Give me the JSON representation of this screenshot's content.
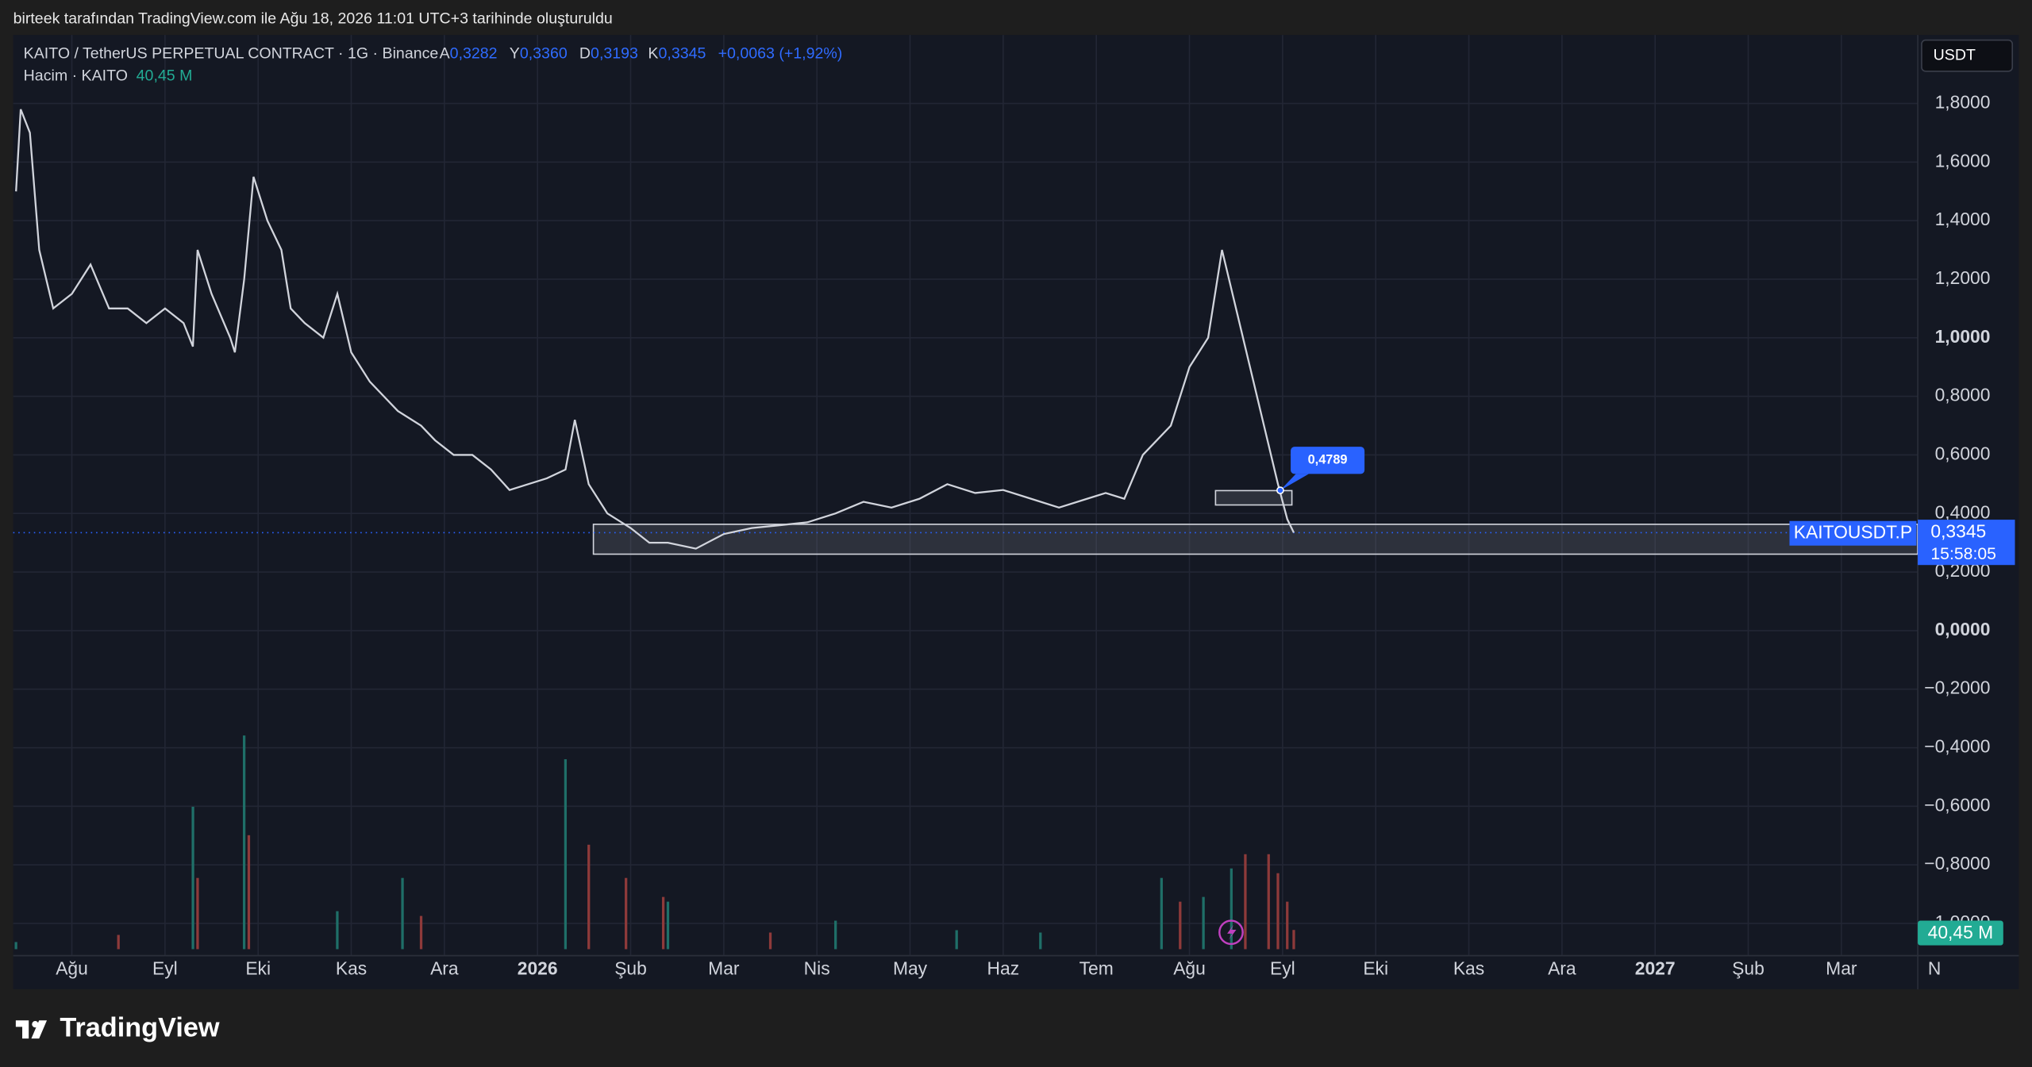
{
  "header": {
    "caption": "birteek tarafından TradingView.com ile Ağu 18, 2026 11:01 UTC+3 tarihinde oluşturuldu"
  },
  "footer": {
    "brand": "TradingView"
  },
  "chart_data": {
    "type": "line",
    "symbol": "KAITO / TetherUS PERPETUAL CONTRACT · 1G · Binance",
    "ohlc": [
      {
        "key": "A",
        "value": "0,3282"
      },
      {
        "key": "Y",
        "value": "0,3360"
      },
      {
        "key": "D",
        "value": "0,3193"
      },
      {
        "key": "K",
        "value": "0,3345"
      }
    ],
    "change": "+0,0063 (+1,92%)",
    "volume_title": "Hacim · KAITO",
    "volume_value": "40,45 M",
    "currency": "USDT",
    "ticker": "KAITOUSDT.P",
    "countdown": "15:58:05",
    "last_price": {
      "value": 0.3345,
      "label": "0,3345"
    },
    "callout": {
      "value": 0.4789,
      "label": "0,4789"
    },
    "zones": [
      {
        "x": [
          5.6,
          19.82
        ],
        "y": [
          0.261,
          0.363
        ]
      },
      {
        "x": [
          12.28,
          13.1
        ],
        "y": [
          0.429,
          0.478
        ]
      }
    ],
    "color": "#d1d4dc",
    "grid": true,
    "xlim": [
      -0.63,
      19.82
    ],
    "ylim": [
      -1.11,
      2.034
    ],
    "yticks": [
      {
        "value": 1.8,
        "label": "1,8000"
      },
      {
        "value": 1.6,
        "label": "1,6000"
      },
      {
        "value": 1.4,
        "label": "1,4000"
      },
      {
        "value": 1.2,
        "label": "1,2000"
      },
      {
        "value": 1.0,
        "label": "1,0000"
      },
      {
        "value": 0.8,
        "label": "0,8000"
      },
      {
        "value": 0.6,
        "label": "0,6000"
      },
      {
        "value": 0.4,
        "label": "0,4000"
      },
      {
        "value": 0.2,
        "label": "0,2000"
      },
      {
        "value": 0,
        "label": "0,0000"
      },
      {
        "value": -0.2,
        "label": "−0,2000"
      },
      {
        "value": -0.4,
        "label": "−0,4000"
      },
      {
        "value": -0.6,
        "label": "−0,6000"
      },
      {
        "value": -0.8,
        "label": "−0,8000"
      },
      {
        "value": -1.0,
        "label": "−1,0000"
      }
    ],
    "xticks": [
      {
        "value": 0,
        "label": "Ağu"
      },
      {
        "value": 1,
        "label": "Eyl"
      },
      {
        "value": 2,
        "label": "Eki"
      },
      {
        "value": 3,
        "label": "Kas"
      },
      {
        "value": 4,
        "label": "Ara"
      },
      {
        "value": 5,
        "label": "2026"
      },
      {
        "value": 6,
        "label": "Şub"
      },
      {
        "value": 7,
        "label": "Mar"
      },
      {
        "value": 8,
        "label": "Nis"
      },
      {
        "value": 9,
        "label": "May"
      },
      {
        "value": 10,
        "label": "Haz"
      },
      {
        "value": 11,
        "label": "Tem"
      },
      {
        "value": 12,
        "label": "Ağu"
      },
      {
        "value": 13,
        "label": "Eyl"
      },
      {
        "value": 14,
        "label": "Eki"
      },
      {
        "value": 15,
        "label": "Kas"
      },
      {
        "value": 16,
        "label": "Ara"
      },
      {
        "value": 17,
        "label": "2027"
      },
      {
        "value": 18,
        "label": "Şub"
      },
      {
        "value": 19,
        "label": "Mar"
      },
      {
        "value": 20,
        "label": "N"
      }
    ],
    "x": [
      -0.6,
      -0.55,
      -0.45,
      -0.35,
      -0.2,
      0,
      0.2,
      0.4,
      0.6,
      0.8,
      1.0,
      1.2,
      1.3,
      1.35,
      1.5,
      1.7,
      1.75,
      1.85,
      1.95,
      2.1,
      2.25,
      2.35,
      2.5,
      2.7,
      2.85,
      3.0,
      3.2,
      3.5,
      3.75,
      3.9,
      4.1,
      4.3,
      4.5,
      4.7,
      4.9,
      5.1,
      5.3,
      5.4,
      5.55,
      5.75,
      6.0,
      6.2,
      6.4,
      6.7,
      7.0,
      7.3,
      7.6,
      7.9,
      8.2,
      8.5,
      8.8,
      9.1,
      9.4,
      9.7,
      10.0,
      10.3,
      10.6,
      10.9,
      11.1,
      11.3,
      11.5,
      11.8,
      12.0,
      12.2,
      12.35,
      12.5,
      12.65,
      12.8,
      12.95,
      13.05,
      13.12
    ],
    "values": [
      1.5,
      1.78,
      1.7,
      1.3,
      1.1,
      1.15,
      1.25,
      1.1,
      1.1,
      1.05,
      1.1,
      1.05,
      0.97,
      1.3,
      1.15,
      1.0,
      0.95,
      1.2,
      1.55,
      1.4,
      1.3,
      1.1,
      1.05,
      1.0,
      1.15,
      0.95,
      0.85,
      0.75,
      0.7,
      0.65,
      0.6,
      0.6,
      0.55,
      0.48,
      0.5,
      0.52,
      0.55,
      0.72,
      0.5,
      0.4,
      0.35,
      0.3,
      0.3,
      0.28,
      0.33,
      0.35,
      0.36,
      0.37,
      0.4,
      0.44,
      0.42,
      0.45,
      0.5,
      0.47,
      0.48,
      0.45,
      0.42,
      0.45,
      0.47,
      0.45,
      0.6,
      0.7,
      0.9,
      1.0,
      1.3,
      1.1,
      0.9,
      0.7,
      0.5,
      0.38,
      0.3345
    ],
    "vlim": [
      0,
      600
    ],
    "volume": [
      {
        "color": "#1f6f68",
        "x": [
          -0.6,
          1.3,
          1.85,
          2.85,
          3.55,
          5.3,
          6.4,
          8.2,
          11.7,
          12.15,
          12.45,
          9.5,
          10.4
        ],
        "values": [
          15,
          300,
          450,
          80,
          150,
          400,
          100,
          60,
          150,
          110,
          170,
          40,
          35
        ]
      },
      {
        "color": "#8e3a3a",
        "x": [
          1.35,
          1.9,
          3.75,
          5.55,
          5.95,
          6.35,
          11.9,
          12.6,
          12.85,
          12.95,
          13.05,
          13.12,
          0.5,
          7.5
        ],
        "values": [
          150,
          240,
          70,
          220,
          150,
          110,
          100,
          200,
          200,
          160,
          100,
          40.45,
          30,
          35
        ]
      }
    ]
  }
}
